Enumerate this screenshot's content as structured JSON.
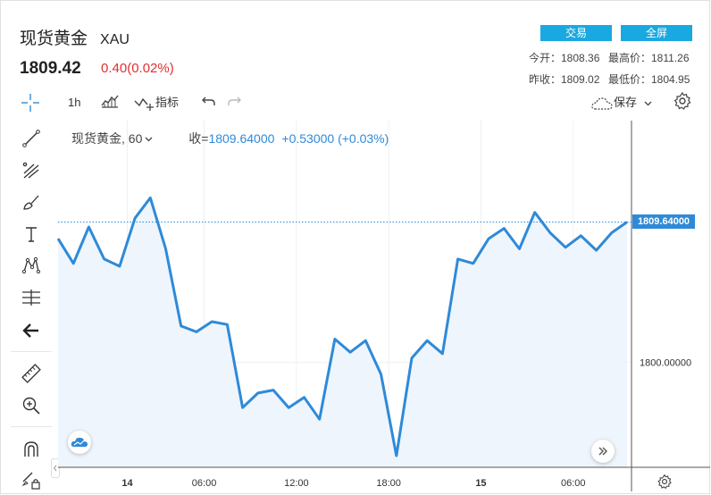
{
  "header": {
    "title": "现货黄金",
    "code": "XAU",
    "price": "1809.42",
    "change": "0.40(0.02%)",
    "trade_label": "交易",
    "fullscreen_label": "全屏",
    "open": "今开：1808.36",
    "high": "最高价：1811.26",
    "prev_close": "昨收：1809.02",
    "low": "最低价：1804.95"
  },
  "toolbar": {
    "interval": "1h",
    "indicators_label": "指标",
    "save_label": "保存"
  },
  "legend": {
    "symbol": "现货黄金, 60",
    "close_label": "收=",
    "close_value": "1809.64000",
    "change": "+0.53000 (+0.03%)"
  },
  "colors": {
    "line": "#2e8ad8",
    "area": "#eef5fc",
    "accent": "#1aa8e0",
    "down": "#e03030"
  },
  "chart_data": {
    "type": "area",
    "x_tick_labels": [
      {
        "label": "14",
        "index": 4.5
      },
      {
        "label": "06:00",
        "index": 9.5
      },
      {
        "label": "12:00",
        "index": 15.5
      },
      {
        "label": "18:00",
        "index": 21.5
      },
      {
        "label": "15",
        "index": 27.5
      },
      {
        "label": "06:00",
        "index": 33.5
      }
    ],
    "y_tick_labels": [
      "1800.00000"
    ],
    "y_ticks": [
      1800
    ],
    "ylim": [
      1792.8,
      1816.6
    ],
    "last_value_label": "1809.64000",
    "last_value": 1809.64,
    "grid": true,
    "values": [
      1808.5,
      1806.8,
      1809.3,
      1807.1,
      1806.6,
      1809.9,
      1811.3,
      1807.8,
      1802.5,
      1802.1,
      1802.8,
      1802.6,
      1796.9,
      1797.9,
      1798.1,
      1796.9,
      1797.6,
      1796.1,
      1801.6,
      1800.7,
      1801.5,
      1799.2,
      1793.6,
      1800.3,
      1801.5,
      1800.6,
      1807.1,
      1806.8,
      1808.5,
      1809.2,
      1807.8,
      1810.3,
      1808.9,
      1807.9,
      1808.7,
      1807.7,
      1808.9,
      1809.64
    ]
  }
}
